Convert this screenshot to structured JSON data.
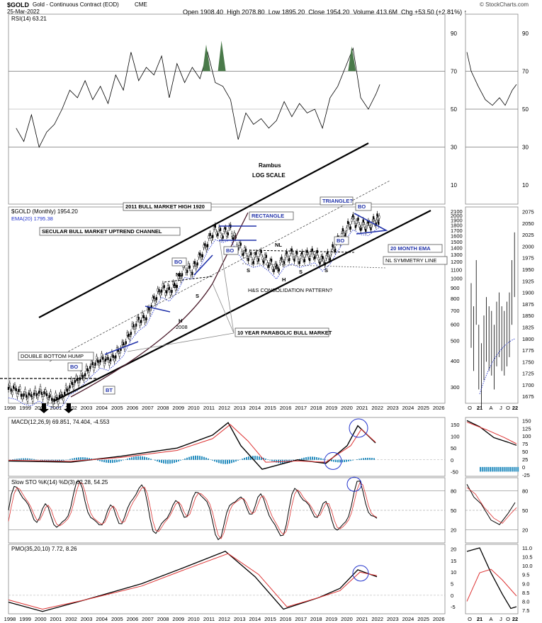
{
  "header": {
    "symbol": "$GOLD",
    "description": "Gold - Continuous Contract (EOD)",
    "exchange": "CME",
    "date": "25-Mar-2022",
    "open_label": "Open",
    "open": "1908.40",
    "high_label": "High",
    "high": "2078.80",
    "low_label": "Low",
    "low": "1895.20",
    "close_label": "Close",
    "close": "1954.20",
    "volume_label": "Volume",
    "volume": "413.6M",
    "chg_label": "Chg",
    "chg": "+53.50 (+2.81%)",
    "watermark": "© StockCharts.com"
  },
  "chart_data": [
    {
      "id": "rsi",
      "type": "line",
      "title": "RSI(14) 63.21",
      "yticks": [
        90,
        70,
        50,
        30,
        10
      ],
      "ylim": [
        0,
        100
      ],
      "x": [
        1998.5,
        1999,
        1999.5,
        2000,
        2000.5,
        2001,
        2001.5,
        2002,
        2002.5,
        2003,
        2003.5,
        2004,
        2004.5,
        2005,
        2005.5,
        2006,
        2006.5,
        2007,
        2007.5,
        2008,
        2008.5,
        2009,
        2009.5,
        2010,
        2010.5,
        2011,
        2011.5,
        2012,
        2012.5,
        2013,
        2013.5,
        2014,
        2014.5,
        2015,
        2015.5,
        2016,
        2016.5,
        2017,
        2017.5,
        2018,
        2018.5,
        2019,
        2019.5,
        2020,
        2020.5,
        2021,
        2021.5,
        2022,
        2022.25
      ],
      "values": [
        40,
        33,
        47,
        30,
        38,
        42,
        50,
        60,
        56,
        65,
        55,
        62,
        53,
        68,
        60,
        80,
        65,
        72,
        68,
        78,
        56,
        74,
        64,
        72,
        66,
        80,
        64,
        62,
        55,
        34,
        48,
        42,
        45,
        40,
        44,
        54,
        46,
        53,
        48,
        50,
        40,
        56,
        62,
        72,
        82,
        56,
        50,
        58,
        63
      ]
    },
    {
      "id": "price",
      "type": "candlestick",
      "title": "$GOLD (Monthly) 1954.20",
      "series_label": "EMA(20) 1795.38",
      "scale": "log",
      "yticks": [
        2100,
        2000,
        1900,
        1800,
        1700,
        1600,
        1500,
        1400,
        1300,
        1200,
        1100,
        1000,
        900,
        800,
        700,
        600,
        500,
        400,
        300
      ],
      "inset_yticks": [
        2075,
        2050,
        2025,
        2000,
        1975,
        1950,
        1925,
        1900,
        1875,
        1850,
        1825,
        1800,
        1775,
        1750,
        1725,
        1700,
        1675
      ],
      "ylim": [
        250,
        2200
      ],
      "x": [
        1998,
        1998.5,
        1999,
        1999.5,
        2000,
        2000.5,
        2001,
        2001.5,
        2002,
        2002.5,
        2003,
        2003.5,
        2004,
        2004.5,
        2005,
        2005.5,
        2006,
        2006.5,
        2007,
        2007.5,
        2008,
        2008.5,
        2009,
        2009.5,
        2010,
        2010.5,
        2011,
        2011.5,
        2012,
        2012.5,
        2013,
        2013.5,
        2014,
        2014.5,
        2015,
        2015.5,
        2016,
        2016.5,
        2017,
        2017.5,
        2018,
        2018.5,
        2019,
        2019.5,
        2020,
        2020.5,
        2021,
        2021.5,
        2022,
        2022.25
      ],
      "close": [
        295,
        290,
        275,
        270,
        285,
        272,
        262,
        268,
        305,
        320,
        350,
        380,
        410,
        400,
        430,
        470,
        560,
        620,
        660,
        780,
        900,
        860,
        950,
        1120,
        1100,
        1250,
        1500,
        1700,
        1650,
        1700,
        1450,
        1300,
        1250,
        1280,
        1200,
        1100,
        1250,
        1300,
        1250,
        1280,
        1320,
        1200,
        1300,
        1500,
        1700,
        1900,
        1800,
        1780,
        1900,
        1954
      ]
    },
    {
      "id": "macd",
      "type": "line",
      "title": "MACD(12,26,9) 69.851, 74.404, -4.553",
      "yticks": [
        150,
        100,
        50,
        0,
        -50
      ],
      "inset_yticks": [
        150,
        125,
        100,
        75,
        50,
        25,
        0,
        -25
      ],
      "ylim": [
        -70,
        180
      ]
    },
    {
      "id": "sto",
      "type": "line",
      "title": "Slow STO %K(14) %D(3) 62.28, 54.25",
      "yticks": [
        80,
        50,
        20
      ],
      "ylim": [
        0,
        100
      ]
    },
    {
      "id": "pmo",
      "type": "line",
      "title": "PMO(35,20,10) 7.72, 8.26",
      "yticks": [
        20,
        15,
        10,
        5,
        0,
        -5
      ],
      "inset_yticks": [
        11.0,
        10.5,
        10.0,
        9.5,
        9.0,
        8.5,
        8.0,
        7.5
      ],
      "ylim": [
        -8,
        22
      ]
    }
  ],
  "axis": {
    "years": [
      "1998",
      "1999",
      "2000",
      "2001",
      "2002",
      "2003",
      "2004",
      "2005",
      "2006",
      "2007",
      "2008",
      "2009",
      "2010",
      "2011",
      "2012",
      "2013",
      "2014",
      "2015",
      "2016",
      "2017",
      "2018",
      "2019",
      "2020",
      "2021",
      "2022",
      "2023",
      "2024",
      "2025",
      "2026"
    ],
    "inset_months": [
      "O",
      "21",
      "A",
      "J",
      "O",
      "22"
    ]
  },
  "annotations": {
    "rambus": "Rambus",
    "log_scale": "LOG SCALE",
    "bull_high": "2011 BULL MARKET HIGH 1920",
    "rectangle": "RECTANGLE",
    "secular": "SECULAR BULL MARKET UPTREND CHANNEL",
    "triangle": "TRIANGLE?",
    "bo": "BO",
    "nl": "NL",
    "s": "S",
    "h": "H",
    "hs": "H&S CONSOLIDATION PATTERN?",
    "parabolic": "10 YEAR PARABOLIC BULL MARKET",
    "double_bottom": "DOUBLE BOTTOM HUMP",
    "bt": "BT",
    "year_2008": "2008",
    "ema20m": "20 MONTH EMA",
    "nl_symmetry": "NL SYMMETRY LINE"
  },
  "colors": {
    "price_bar": "#000000",
    "ema": "#2233cc",
    "signal": "#dd3333",
    "hist": "#2a8fc0",
    "rsi_fill": "#4a7a4a",
    "callout": "#2233aa",
    "grid": "#999999"
  }
}
